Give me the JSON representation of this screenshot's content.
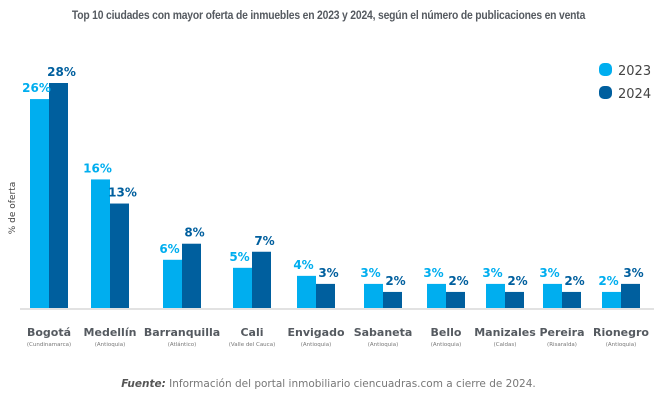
{
  "chart_data": {
    "type": "bar",
    "title": "Top 10 ciudades con mayor oferta de inmuebles en 2023 y 2024, según el número de publicaciones en venta",
    "xlabel": "",
    "ylabel": "% de oferta",
    "ylim": [
      0,
      30
    ],
    "grid": false,
    "legend_position": "top-right",
    "categories": [
      "Bogotá",
      "Medellín",
      "Barranquilla",
      "Cali",
      "Envigado",
      "Sabaneta",
      "Bello",
      "Manizales",
      "Pereira",
      "Rionegro"
    ],
    "subcategories": [
      "(Cundinamarca)",
      "(Antioquia)",
      "(Atlántico)",
      "(Valle del Cauca)",
      "(Antioquia)",
      "(Antioquia)",
      "(Antioquia)",
      "(Caldas)",
      "(Risaralda)",
      "(Antioquia)"
    ],
    "series": [
      {
        "name": "2023",
        "color": "#00aeef",
        "values": [
          26,
          16,
          6,
          5,
          4,
          3,
          3,
          3,
          3,
          2
        ]
      },
      {
        "name": "2024",
        "color": "#005f9e",
        "values": [
          28,
          13,
          8,
          7,
          3,
          2,
          2,
          2,
          2,
          3
        ]
      }
    ],
    "value_suffix": "%"
  },
  "source": {
    "label": "Fuente:",
    "text": " Información del portal inmobiliario ciencuadras.com a cierre de 2024."
  }
}
